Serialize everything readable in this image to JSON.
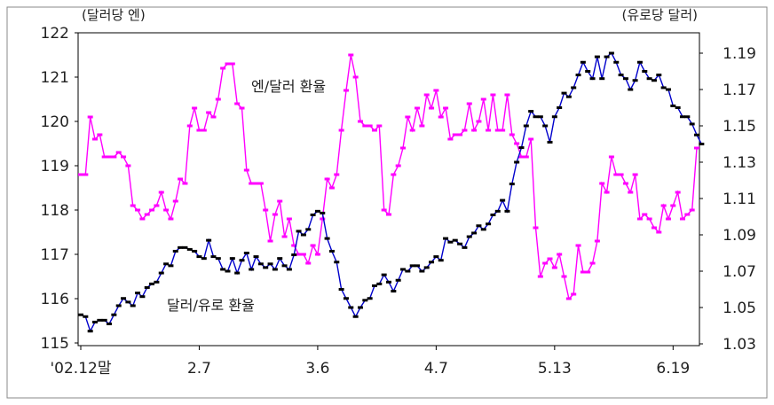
{
  "chart_data": {
    "type": "line",
    "left_axis": {
      "unit": "(달러당 엔)",
      "ticks": [
        "122",
        "121",
        "120",
        "119",
        "118",
        "117",
        "116",
        "115"
      ],
      "range": [
        115,
        122
      ]
    },
    "right_axis": {
      "unit": "(유로당 달러)",
      "ticks": [
        "1.19",
        "1.17",
        "1.15",
        "1.13",
        "1.11",
        "1.09",
        "1.07",
        "1.05",
        "1.03"
      ],
      "range": [
        1.03,
        1.2
      ]
    },
    "x_tick_labels": [
      "'02.12말",
      "2.7",
      "3.6",
      "4.7",
      "5.13",
      "6.19"
    ],
    "x_tick_index": [
      0,
      25,
      50,
      75,
      100,
      125
    ],
    "series": [
      {
        "name": "엔/달러 환율",
        "axis": "left",
        "color": "#ff00ff",
        "values": [
          118.8,
          118.8,
          120.1,
          119.6,
          119.7,
          119.2,
          119.2,
          119.2,
          119.3,
          119.2,
          119.0,
          118.1,
          118.0,
          117.8,
          117.9,
          118.0,
          118.1,
          118.4,
          118.0,
          117.8,
          118.2,
          118.7,
          118.6,
          119.9,
          120.3,
          119.8,
          119.8,
          120.2,
          120.1,
          120.5,
          121.2,
          121.3,
          121.3,
          120.4,
          120.3,
          118.9,
          118.6,
          118.6,
          118.6,
          118.0,
          117.3,
          117.9,
          118.2,
          117.4,
          117.8,
          117.2,
          117.0,
          117.0,
          116.8,
          117.2,
          117.0,
          117.8,
          118.7,
          118.5,
          118.8,
          119.8,
          120.7,
          121.5,
          121.0,
          120.0,
          119.9,
          119.9,
          119.8,
          119.9,
          118.0,
          117.9,
          118.8,
          119.0,
          119.4,
          120.1,
          119.8,
          120.3,
          119.9,
          120.6,
          120.3,
          120.7,
          120.1,
          120.3,
          119.6,
          119.7,
          119.7,
          119.8,
          120.4,
          119.8,
          120.0,
          120.5,
          119.8,
          120.6,
          119.8,
          119.8,
          120.6,
          119.7,
          119.5,
          119.2,
          119.2,
          119.6,
          117.6,
          116.5,
          116.8,
          116.9,
          116.7,
          117.0,
          116.5,
          116.0,
          116.1,
          117.2,
          116.6,
          116.6,
          116.8,
          117.3,
          118.6,
          118.4,
          119.2,
          118.8,
          118.8,
          118.6,
          118.4,
          118.8,
          117.8,
          117.9,
          117.8,
          117.6,
          117.5,
          118.1,
          117.8,
          118.1,
          118.4,
          117.8,
          117.9,
          118.0,
          119.4
        ]
      },
      {
        "name": "달러/유로 환율",
        "axis": "right",
        "color": "#0000cc",
        "values": [
          1.046,
          1.045,
          1.037,
          1.042,
          1.043,
          1.043,
          1.041,
          1.046,
          1.051,
          1.055,
          1.053,
          1.051,
          1.058,
          1.056,
          1.061,
          1.063,
          1.064,
          1.069,
          1.074,
          1.073,
          1.081,
          1.083,
          1.083,
          1.082,
          1.081,
          1.078,
          1.077,
          1.087,
          1.078,
          1.077,
          1.071,
          1.07,
          1.077,
          1.069,
          1.076,
          1.08,
          1.071,
          1.078,
          1.074,
          1.072,
          1.074,
          1.071,
          1.077,
          1.073,
          1.071,
          1.079,
          1.092,
          1.09,
          1.093,
          1.101,
          1.103,
          1.102,
          1.088,
          1.081,
          1.075,
          1.06,
          1.055,
          1.05,
          1.045,
          1.05,
          1.054,
          1.055,
          1.062,
          1.063,
          1.068,
          1.064,
          1.059,
          1.065,
          1.071,
          1.07,
          1.073,
          1.073,
          1.07,
          1.072,
          1.075,
          1.078,
          1.076,
          1.088,
          1.086,
          1.087,
          1.085,
          1.083,
          1.089,
          1.091,
          1.095,
          1.093,
          1.096,
          1.101,
          1.103,
          1.109,
          1.103,
          1.118,
          1.13,
          1.138,
          1.15,
          1.158,
          1.155,
          1.155,
          1.15,
          1.141,
          1.155,
          1.16,
          1.168,
          1.166,
          1.171,
          1.178,
          1.185,
          1.18,
          1.176,
          1.188,
          1.176,
          1.188,
          1.19,
          1.185,
          1.178,
          1.176,
          1.17,
          1.175,
          1.185,
          1.18,
          1.176,
          1.175,
          1.178,
          1.171,
          1.17,
          1.161,
          1.16,
          1.155,
          1.155,
          1.151,
          1.145,
          1.14
        ]
      }
    ],
    "annotations": [
      {
        "text": "엔/달러 환율",
        "series": 0
      },
      {
        "text": "달러/유로 환율",
        "series": 1
      }
    ],
    "grid": false
  }
}
